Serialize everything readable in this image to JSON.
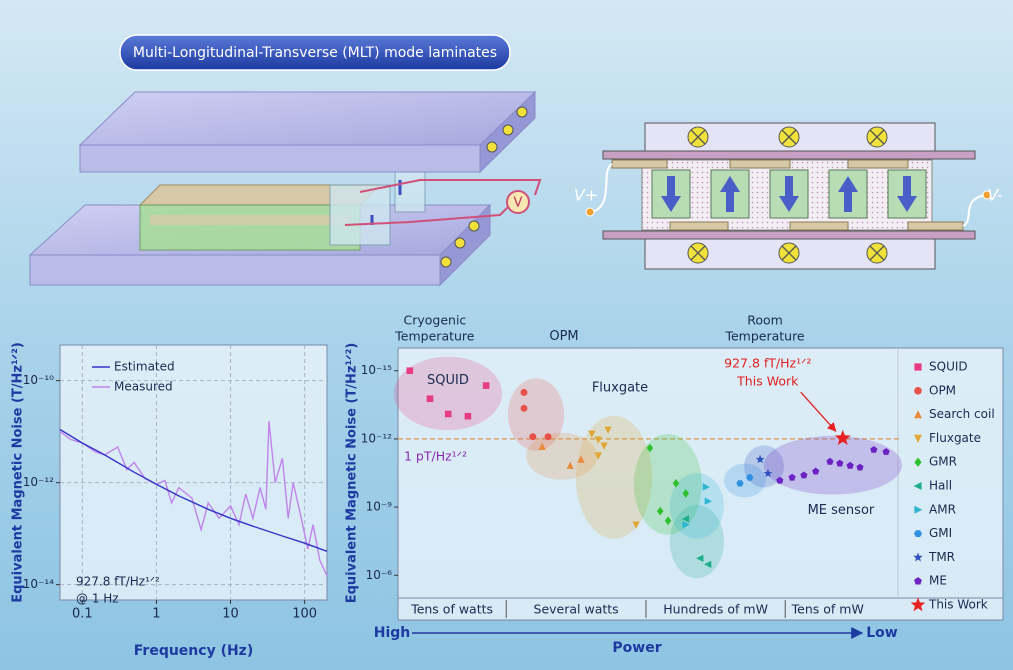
{
  "banner": {
    "title": "Multi-Longitudinal-Transverse (MLT) mode laminates"
  },
  "diagram": {
    "meter": "V",
    "positive": "V+",
    "negative": "V-"
  },
  "chart_data": [
    {
      "type": "line",
      "xlabel": "Frequency (Hz)",
      "ylabel": "Equivalent Magnetic Noise (T/Hz¹ᐟ²)",
      "log_x": true,
      "log_y": true,
      "grid": true,
      "legend": "upper right",
      "xlim": [
        0.05,
        200
      ],
      "ylim": [
        5e-15,
        5e-10
      ],
      "xticks": [
        0.1,
        1,
        10,
        100
      ],
      "yticks": [
        {
          "value": 1e-14,
          "label": "10⁻¹⁴"
        },
        {
          "value": 1e-12,
          "label": "10⁻¹²"
        },
        {
          "value": 1e-10,
          "label": "10⁻¹⁰"
        }
      ],
      "series": [
        {
          "name": "Estimated",
          "color": "#3434c8",
          "x": [
            0.05,
            0.1,
            0.2,
            0.5,
            1,
            2,
            5,
            10,
            20,
            50,
            100,
            200
          ],
          "values": [
            1.1e-11,
            6e-12,
            3.5e-12,
            1.6e-12,
            9.3e-13,
            5.5e-13,
            3e-13,
            2e-13,
            1.4e-13,
            9e-14,
            6.5e-14,
            4.5e-14
          ]
        },
        {
          "name": "Measured",
          "color": "#c084ea",
          "x": [
            0.05,
            0.07,
            0.1,
            0.15,
            0.2,
            0.3,
            0.4,
            0.5,
            0.7,
            1,
            1.3,
            1.6,
            2,
            3,
            4,
            5,
            7,
            10,
            13,
            16,
            20,
            25,
            30,
            33,
            40,
            50,
            60,
            70,
            90,
            110,
            130,
            160,
            200
          ],
          "values": [
            1e-11,
            7e-12,
            6e-12,
            4e-12,
            3.5e-12,
            5e-12,
            1.8e-12,
            2.5e-12,
            1.2e-12,
            9.3e-13,
            1.1e-12,
            4e-13,
            8e-13,
            5e-13,
            1.2e-13,
            4e-13,
            2e-13,
            3.5e-13,
            1.5e-13,
            6e-13,
            2e-13,
            8e-13,
            3e-13,
            1.6e-11,
            1e-12,
            3e-12,
            2e-13,
            1e-12,
            2e-13,
            5e-14,
            1.5e-13,
            3e-14,
            1.5e-14
          ]
        }
      ],
      "annotation": [
        "927.8 fT/Hz¹ᐟ²",
        "@ 1 Hz"
      ]
    },
    {
      "type": "scatter",
      "xlabel": "Power",
      "x_ends": [
        "High",
        "Low"
      ],
      "ylabel": "Equivalent Magnetic Noise (T/Hz¹ᐟ²)",
      "log_y": true,
      "y_reversed": true,
      "xlim": [
        0,
        100
      ],
      "ylim": [
        1e-16,
        1e-05
      ],
      "yticks": [
        {
          "value": 1e-15,
          "label": "10⁻¹⁵"
        },
        {
          "value": 1e-12,
          "label": "10⁻¹²"
        },
        {
          "value": 1e-09,
          "label": "10⁻⁹"
        },
        {
          "value": 1e-06,
          "label": "10⁻⁶"
        }
      ],
      "bands": [
        {
          "label": "Tens of watts",
          "xlim": [
            0,
            22
          ]
        },
        {
          "label": "Several watts",
          "xlim": [
            22,
            50.4
          ]
        },
        {
          "label": "Hundreds of mW",
          "xlim": [
            50.4,
            78.7
          ]
        },
        {
          "label": "Tens of mW",
          "xlim": [
            78.7,
            96
          ]
        }
      ],
      "regions": [
        {
          "lines": [
            "Cryogenic",
            "Temperature"
          ],
          "x": 7.5
        },
        {
          "lines": [
            "Room",
            "Temperature"
          ],
          "x": 74.6
        }
      ],
      "reference_line": {
        "value": 1e-12,
        "label": "1 pT/Hz¹ᐟ²"
      },
      "series": [
        {
          "name": "SQUID",
          "color": "#e83c82",
          "marker": "square",
          "x": [
            2.4,
            6.5,
            10.2,
            14.2,
            17.9
          ],
          "values": [
            1e-15,
            1.7e-14,
            8e-14,
            1e-13,
            4.5e-15
          ]
        },
        {
          "name": "OPM",
          "color": "#e8504a",
          "marker": "circle",
          "x": [
            25.6,
            25.6,
            27.4,
            30.5
          ],
          "values": [
            9e-15,
            4.5e-14,
            8e-13,
            8e-13
          ]
        },
        {
          "name": "Search coil",
          "color": "#e88a3c",
          "marker": "triangle-up",
          "x": [
            29.3,
            35,
            37.2
          ],
          "values": [
            2.2e-12,
            1.5e-11,
            8e-12
          ]
        },
        {
          "name": "Fluxgate",
          "color": "#e0a634",
          "marker": "triangle-down",
          "x": [
            39.4,
            40.7,
            41.9,
            42.7,
            40.7,
            48.4
          ],
          "values": [
            6e-13,
            1.1e-12,
            2e-12,
            4e-13,
            5.5e-12,
            6e-09
          ]
        },
        {
          "name": "GMR",
          "color": "#2ec02e",
          "marker": "diamond",
          "x": [
            51.2,
            56.5,
            53.3,
            54.9,
            58.5
          ],
          "values": [
            2.5e-12,
            9e-11,
            1.5e-09,
            4e-09,
            2.5e-10
          ]
        },
        {
          "name": "Hall",
          "color": "#1fae8c",
          "marker": "triangle-left",
          "x": [
            58.5,
            61.4,
            63
          ],
          "values": [
            3.3e-09,
            1.8e-07,
            3.3e-07
          ]
        },
        {
          "name": "AMR",
          "color": "#2cb6d2",
          "marker": "triangle-right",
          "x": [
            62.6,
            63,
            58.5
          ],
          "values": [
            1.3e-10,
            5.5e-10,
            6e-09
          ]
        },
        {
          "name": "GMI",
          "color": "#2f8fe0",
          "marker": "hexagon",
          "x": [
            69.5,
            71.5
          ],
          "values": [
            9e-11,
            5e-11
          ]
        },
        {
          "name": "TMR",
          "color": "#3050c0",
          "marker": "star",
          "x": [
            73.6,
            75.2
          ],
          "values": [
            8e-12,
            3.3e-11
          ]
        },
        {
          "name": "ME",
          "color": "#6d22c4",
          "marker": "pentagon",
          "group_label": "ME sensor",
          "x": [
            77.6,
            80.1,
            82.5,
            84.9,
            87.8,
            89.8,
            91.9,
            93.9,
            96.7,
            99.2
          ],
          "values": [
            6.8e-11,
            5e-11,
            4e-11,
            2.7e-11,
            1e-11,
            1.2e-11,
            1.5e-11,
            1.8e-11,
            3e-12,
            3.7e-12
          ]
        },
        {
          "name": "This Work",
          "color": "#e82020",
          "marker": "star",
          "x": [
            90.4
          ],
          "values": [
            9.278e-13
          ],
          "annotation": "927.8 fT/Hz¹ᐟ²"
        }
      ]
    }
  ]
}
